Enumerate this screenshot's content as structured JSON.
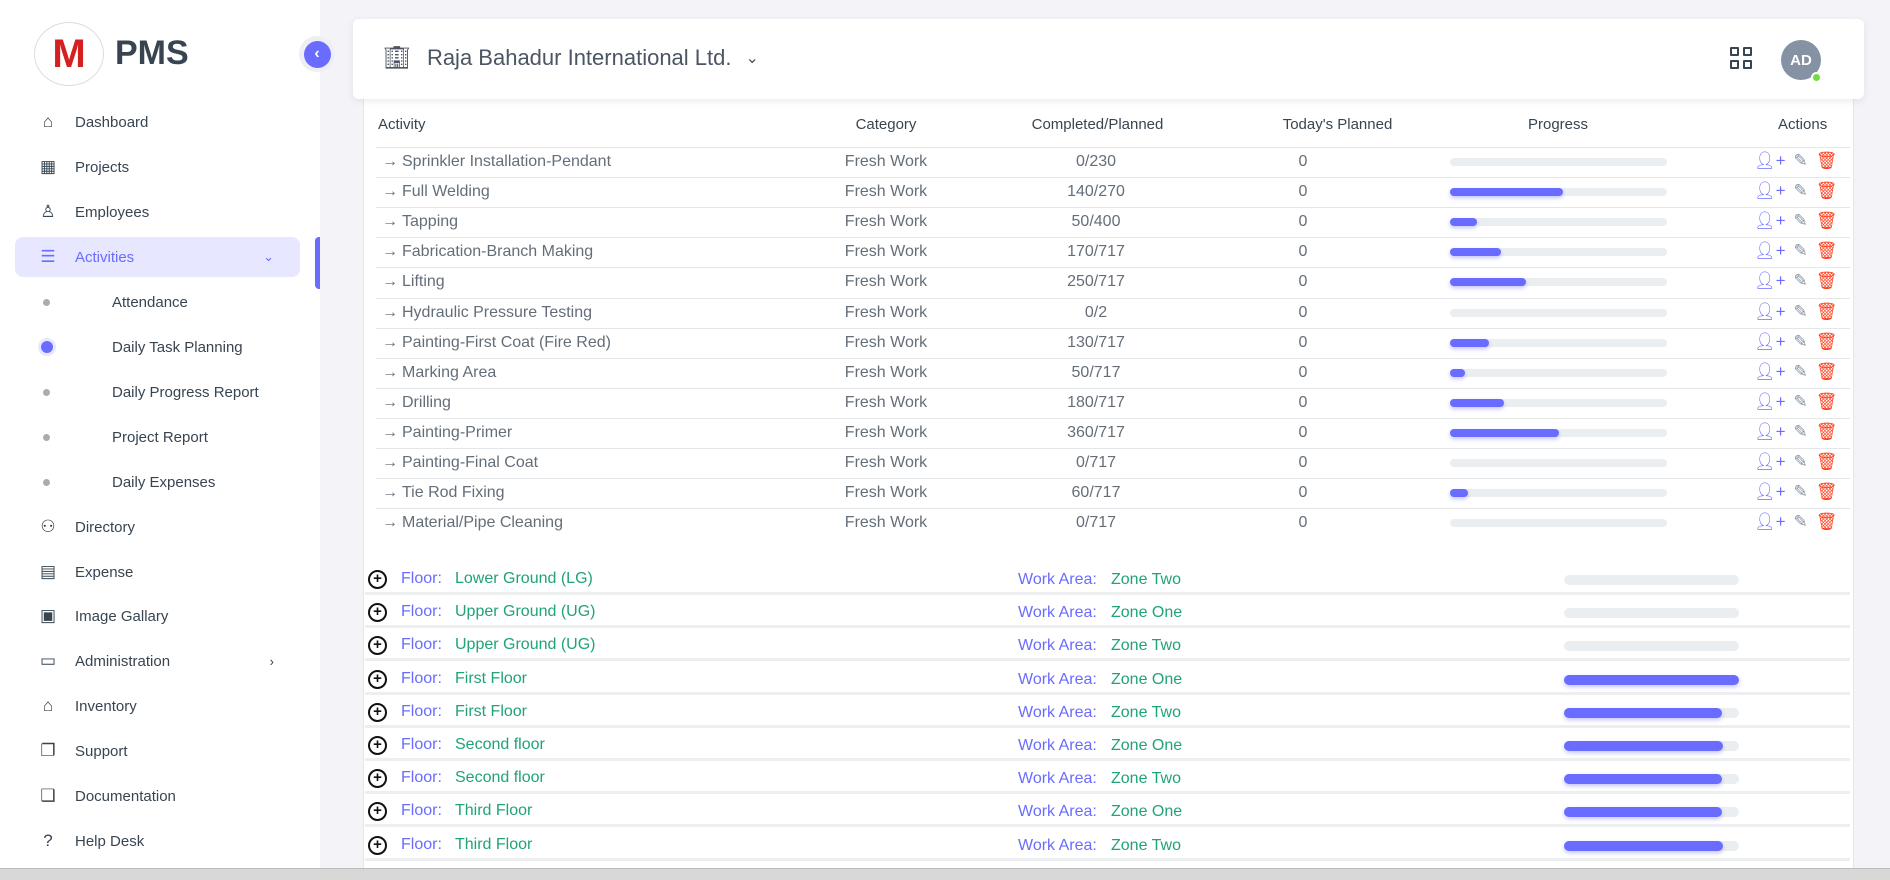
{
  "app": {
    "brand": "PMS",
    "logo_letter": "M"
  },
  "sidebar": {
    "items": [
      {
        "label": "Dashboard",
        "icon": "home-icon",
        "glyph": "⌂"
      },
      {
        "label": "Projects",
        "icon": "building-icon",
        "glyph": "▦"
      },
      {
        "label": "Employees",
        "icon": "user-icon",
        "glyph": "♙"
      },
      {
        "label": "Activities",
        "icon": "list-icon",
        "glyph": "☰",
        "active": true,
        "chevron": "⌄"
      },
      {
        "label": "Directory",
        "icon": "users-icon",
        "glyph": "⚇"
      },
      {
        "label": "Expense",
        "icon": "receipt-icon",
        "glyph": "▤"
      },
      {
        "label": "Image Gallary",
        "icon": "image-icon",
        "glyph": "▣"
      },
      {
        "label": "Administration",
        "icon": "archive-icon",
        "glyph": "▭",
        "chevron": "›"
      },
      {
        "label": "Inventory",
        "icon": "store-icon",
        "glyph": "⌂"
      },
      {
        "label": "Support",
        "icon": "copy-icon",
        "glyph": "❐"
      },
      {
        "label": "Documentation",
        "icon": "book-icon",
        "glyph": "❑"
      },
      {
        "label": "Help Desk",
        "icon": "help-icon",
        "glyph": "?"
      }
    ],
    "sub_items": [
      {
        "label": "Attendance"
      },
      {
        "label": "Daily Task Planning",
        "active": true
      },
      {
        "label": "Daily Progress Report"
      },
      {
        "label": "Project Report"
      },
      {
        "label": "Daily Expenses"
      }
    ]
  },
  "header": {
    "project": "Raja Bahadur International Ltd.",
    "avatar": "AD",
    "online_color": "#71dd37"
  },
  "table": {
    "headers": {
      "activity": "Activity",
      "category": "Category",
      "completed": "Completed/Planned",
      "today": "Today's Planned",
      "progress": "Progress",
      "actions": "Actions"
    },
    "rows": [
      {
        "activity": "Sprinkler Installation-Pendant",
        "category": "Fresh Work",
        "completed_planned": "0/230",
        "today": "0",
        "progress": 0
      },
      {
        "activity": "Full Welding",
        "category": "Fresh Work",
        "completed_planned": "140/270",
        "today": "0",
        "progress": 51.9
      },
      {
        "activity": "Tapping",
        "category": "Fresh Work",
        "completed_planned": "50/400",
        "today": "0",
        "progress": 12.5
      },
      {
        "activity": "Fabrication-Branch Making",
        "category": "Fresh Work",
        "completed_planned": "170/717",
        "today": "0",
        "progress": 23.7
      },
      {
        "activity": "Lifting",
        "category": "Fresh Work",
        "completed_planned": "250/717",
        "today": "0",
        "progress": 34.9
      },
      {
        "activity": "Hydraulic Pressure Testing",
        "category": "Fresh Work",
        "completed_planned": "0/2",
        "today": "0",
        "progress": 0
      },
      {
        "activity": "Painting-First Coat (Fire Red)",
        "category": "Fresh Work",
        "completed_planned": "130/717",
        "today": "0",
        "progress": 18.1
      },
      {
        "activity": "Marking Area",
        "category": "Fresh Work",
        "completed_planned": "50/717",
        "today": "0",
        "progress": 7
      },
      {
        "activity": "Drilling",
        "category": "Fresh Work",
        "completed_planned": "180/717",
        "today": "0",
        "progress": 25.1
      },
      {
        "activity": "Painting-Primer",
        "category": "Fresh Work",
        "completed_planned": "360/717",
        "today": "0",
        "progress": 50.2
      },
      {
        "activity": "Painting-Final Coat",
        "category": "Fresh Work",
        "completed_planned": "0/717",
        "today": "0",
        "progress": 0
      },
      {
        "activity": "Tie Rod Fixing",
        "category": "Fresh Work",
        "completed_planned": "60/717",
        "today": "0",
        "progress": 8.4
      },
      {
        "activity": "Material/Pipe Cleaning",
        "category": "Fresh Work",
        "completed_planned": "0/717",
        "today": "0",
        "progress": 0
      }
    ]
  },
  "floors": {
    "floor_label": "Floor:",
    "area_label": "Work Area:",
    "rows": [
      {
        "floor": "Lower Ground (LG)",
        "area": "Zone Two",
        "progress": 0
      },
      {
        "floor": "Upper Ground (UG)",
        "area": "Zone One",
        "progress": 0
      },
      {
        "floor": "Upper Ground (UG)",
        "area": "Zone Two",
        "progress": 0
      },
      {
        "floor": "First Floor",
        "area": "Zone One",
        "progress": 100
      },
      {
        "floor": "First Floor",
        "area": "Zone Two",
        "progress": 90
      },
      {
        "floor": "Second floor",
        "area": "Zone One",
        "progress": 91
      },
      {
        "floor": "Second floor",
        "area": "Zone Two",
        "progress": 90
      },
      {
        "floor": "Third Floor",
        "area": "Zone One",
        "progress": 90
      },
      {
        "floor": "Third Floor",
        "area": "Zone Two",
        "progress": 91
      }
    ]
  },
  "colors": {
    "accent": "#696cff",
    "green": "#20a37a",
    "danger": "#ff3e1d"
  }
}
